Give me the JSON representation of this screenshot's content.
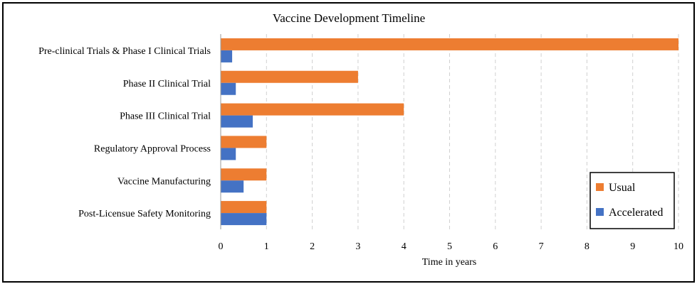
{
  "chart_data": {
    "type": "bar",
    "orientation": "horizontal",
    "title": "Vaccine Development Timeline",
    "xlabel": "Time in years",
    "ylabel": "",
    "xlim": [
      0,
      10
    ],
    "xticks": [
      0,
      1,
      2,
      3,
      4,
      5,
      6,
      7,
      8,
      9,
      10
    ],
    "grid": "vertical dashed",
    "categories": [
      "Pre-clinical Trials & Phase I Clinical Trials",
      "Phase II Clinical Trial",
      "Phase III Clinical Trial",
      "Regulatory Approval Process",
      "Vaccine Manufacturing",
      "Post-Licensue Safety Monitoring"
    ],
    "series": [
      {
        "name": "Usual",
        "color": "#ED7D31",
        "values": [
          10,
          3,
          4,
          1,
          1,
          1
        ]
      },
      {
        "name": "Accelerated",
        "color": "#4472C4",
        "values": [
          0.25,
          0.33,
          0.7,
          0.33,
          0.5,
          1
        ]
      }
    ],
    "legend": "bottom-right, boxed"
  }
}
